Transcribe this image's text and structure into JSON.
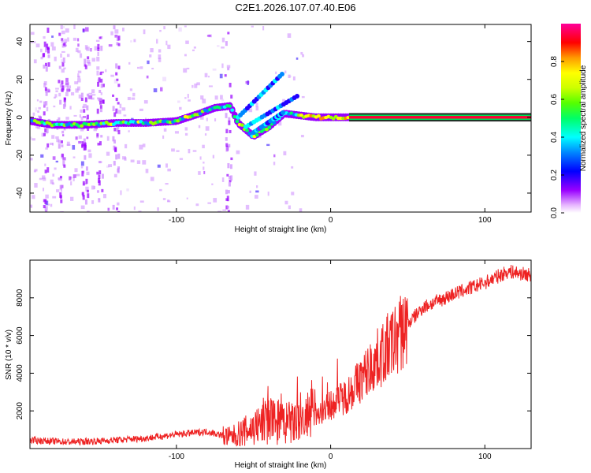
{
  "title": "C2E1.2026.107.07.40.E06",
  "colors": {
    "trace": "#ee2222",
    "axis": "#000000"
  },
  "chart_data": [
    {
      "type": "heatmap",
      "xlabel": "Height of straight line (km)",
      "ylabel": "Frequency (Hz)",
      "xlim": [
        -195,
        130
      ],
      "ylim": [
        -50,
        49
      ],
      "xticks": [
        -100,
        0,
        100
      ],
      "yticks": [
        -40,
        -20,
        0,
        20,
        40
      ],
      "ridge": [
        {
          "x": -195,
          "y": -2
        },
        {
          "x": -180,
          "y": -4
        },
        {
          "x": -160,
          "y": -4
        },
        {
          "x": -140,
          "y": -3
        },
        {
          "x": -120,
          "y": -3
        },
        {
          "x": -100,
          "y": -2
        },
        {
          "x": -85,
          "y": 2
        },
        {
          "x": -75,
          "y": 5
        },
        {
          "x": -65,
          "y": 6
        },
        {
          "x": -60,
          "y": -3
        },
        {
          "x": -50,
          "y": -10
        },
        {
          "x": -40,
          "y": -5
        },
        {
          "x": -30,
          "y": 2
        },
        {
          "x": -20,
          "y": 1
        },
        {
          "x": -10,
          "y": 0
        },
        {
          "x": 0,
          "y": 0
        },
        {
          "x": 10,
          "y": 0
        },
        {
          "x": 130,
          "y": 0
        }
      ],
      "colorbar": {
        "label": "Normalized spectral amplitude",
        "range": [
          0,
          1
        ],
        "ticks": [
          0.0,
          0.2,
          0.4,
          0.6,
          0.8
        ]
      }
    },
    {
      "type": "line",
      "xlabel": "Height of straight line (km)",
      "ylabel": "SNR (10 * v/v)",
      "xlim": [
        -195,
        130
      ],
      "ylim": [
        0,
        10000
      ],
      "xticks": [
        -100,
        0,
        100
      ],
      "yticks": [
        2000,
        4000,
        6000,
        8000
      ],
      "trend": {
        "x": [
          -195,
          -170,
          -150,
          -120,
          -100,
          -80,
          -65,
          -50,
          -40,
          -30,
          -20,
          -10,
          0,
          10,
          20,
          30,
          40,
          50,
          60,
          80,
          100,
          115,
          130
        ],
        "y": [
          450,
          350,
          400,
          550,
          750,
          900,
          600,
          1100,
          1500,
          1300,
          1400,
          1800,
          2300,
          2800,
          3700,
          4700,
          5600,
          6600,
          7500,
          8200,
          8800,
          9400,
          9200
        ]
      }
    }
  ]
}
